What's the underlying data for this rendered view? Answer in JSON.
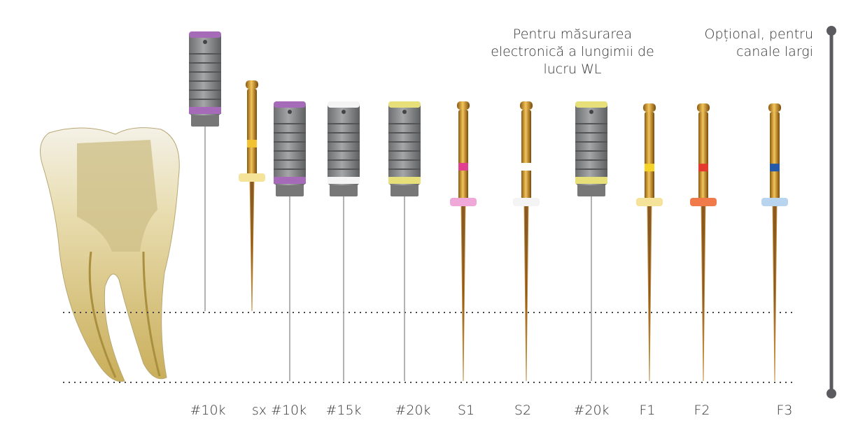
{
  "annotations": {
    "measurement": [
      "Pentru măsurarea",
      "electronică a lungimii de",
      "lucru WL"
    ],
    "optional": [
      "Opțional, pentru",
      "canale largi"
    ]
  },
  "labels": [
    "#10k",
    "sx #10k",
    "#15k",
    "#20k",
    "S1",
    "S2",
    "#20k",
    "F1",
    "F2",
    "F3"
  ]
}
